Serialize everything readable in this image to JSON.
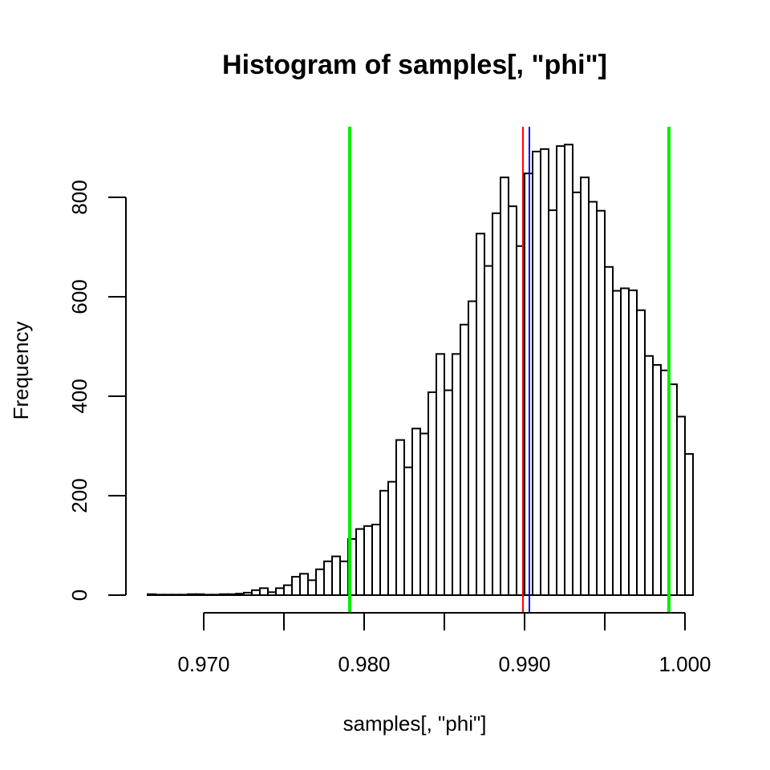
{
  "chart_data": {
    "type": "bar",
    "title": "Histogram of samples[, \"phi\"]",
    "xlabel": "samples[, \"phi\"]",
    "ylabel": "Frequency",
    "xlim": [
      0.965,
      1.0
    ],
    "ylim": [
      0,
      950
    ],
    "x_ticks": [
      0.97,
      0.975,
      0.98,
      0.985,
      0.99,
      0.995,
      1.0
    ],
    "x_tick_labels": [
      "0.970",
      "",
      "0.980",
      "",
      "0.990",
      "",
      "1.000"
    ],
    "y_ticks": [
      0,
      200,
      400,
      600,
      800
    ],
    "y_tick_labels": [
      "0",
      "200",
      "400",
      "600",
      "800"
    ],
    "bin_start": 0.9665,
    "bin_width": 0.0005,
    "values": [
      2,
      1,
      1,
      1,
      1,
      2,
      2,
      1,
      1,
      2,
      2,
      3,
      5,
      10,
      14,
      6,
      14,
      20,
      37,
      43,
      30,
      52,
      68,
      78,
      68,
      113,
      133,
      139,
      142,
      210,
      228,
      312,
      257,
      335,
      325,
      408,
      485,
      412,
      485,
      544,
      591,
      727,
      662,
      768,
      840,
      782,
      702,
      848,
      892,
      897,
      774,
      903,
      906,
      810,
      840,
      791,
      773,
      660,
      612,
      617,
      613,
      573,
      481,
      463,
      452,
      424,
      359,
      284
    ],
    "vlines": [
      {
        "x": 0.9791,
        "color": "#00ee00"
      },
      {
        "x": 0.9899,
        "color": "#ff0000"
      },
      {
        "x": 0.9903,
        "color": "#0000ff"
      },
      {
        "x": 0.999,
        "color": "#00ee00"
      }
    ],
    "grid": false,
    "legend": "none"
  }
}
